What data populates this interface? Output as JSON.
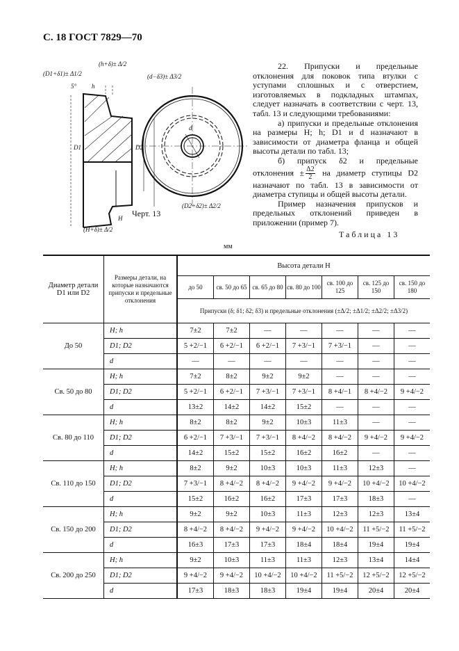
{
  "header": "С. 18 ГОСТ 7829—70",
  "figure": {
    "caption": "Черт. 13",
    "labels": [
      "(h+δ)± Δ/2",
      "h",
      "5°",
      "(d−δ3)± Δ3/2",
      "(D1+δ1)± Δ1/2",
      "D1",
      "D2",
      "(D2+δ2)± Δ2/2",
      "H",
      "(H+δ)± Δ/2",
      "d"
    ]
  },
  "text": {
    "p1": "22. Припуски и предельные отклонения для поковок типа втулки с уступами сплошных и с отверстием, изготовляемых в подкладных штампах, следует назначать в соответствии с черт. 13, табл. 13 и следующими требованиями:",
    "p2": "а) припуски и предельные отклонения на размеры H; h; D1 и d назначают в зависимости от диаметра фланца и общей высоты детали по табл. 13;",
    "p3a": "б) припуск δ2 и предельные отклонения ±",
    "p3_num": "Δ2",
    "p3_den": "2",
    "p3b": "на диаметр ступицы D2 назначают по табл. 13 в зависимости от диаметра ступицы и общей высоты детали.",
    "p4": "Пример назначения припусков и предельных отклонений приведен в приложении (пример 7)."
  },
  "table": {
    "caption": "Таблица 13",
    "unit": "мм",
    "col1_header": "Диаметр детали D1 или D2",
    "col2_header": "Размеры детали, на которые назначаются припуски и предельные отклонения",
    "height_header": "Высота детали H",
    "height_ranges": [
      "до 50",
      "св. 50 до 65",
      "св. 65 до 80",
      "св. 80 до 100",
      "св. 100 до 125",
      "св. 125 до 150",
      "св. 150 до 180"
    ],
    "subheader": "Припуски (δ; δ1; δ2; δ3) и предельные отклонения (±Δ/2; ±Δ1/2; ±Δ2/2; ±Δ3/2)",
    "groups": [
      {
        "diameter": "До 50",
        "rows": [
          {
            "dim": "H; h",
            "values": [
              "7±2",
              "7±2",
              "—",
              "—",
              "—",
              "—",
              "—"
            ]
          },
          {
            "dim": "D1; D2",
            "values": [
              "5 +2/−1",
              "6 +2/−1",
              "6 +2/−1",
              "7 +3/−1",
              "7 +3/−1",
              "—",
              "—"
            ]
          },
          {
            "dim": "d",
            "values": [
              "—",
              "—",
              "—",
              "—",
              "—",
              "—",
              "—"
            ]
          }
        ]
      },
      {
        "diameter": "Св. 50 до 80",
        "rows": [
          {
            "dim": "H; h",
            "values": [
              "7±2",
              "8±2",
              "9±2",
              "9±2",
              "—",
              "—",
              "—"
            ]
          },
          {
            "dim": "D1; D2",
            "values": [
              "5 +2/−1",
              "6 +2/−1",
              "7 +3/−1",
              "7 +3/−1",
              "8 +4/−1",
              "8 +4/−2",
              "9 +4/−2"
            ]
          },
          {
            "dim": "d",
            "values": [
              "13±2",
              "14±2",
              "14±2",
              "15±2",
              "—",
              "—",
              "—"
            ]
          }
        ]
      },
      {
        "diameter": "Св. 80 до 110",
        "rows": [
          {
            "dim": "H; h",
            "values": [
              "8±2",
              "8±2",
              "9±2",
              "10±3",
              "11±3",
              "—",
              "—"
            ]
          },
          {
            "dim": "D1; D2",
            "values": [
              "6 +2/−1",
              "7 +3/−1",
              "7 +3/−1",
              "8 +4/−2",
              "8 +4/−2",
              "9 +4/−2",
              "9 +4/−2"
            ]
          },
          {
            "dim": "d",
            "values": [
              "14±2",
              "15±2",
              "15±2",
              "16±2",
              "16±2",
              "—",
              "—"
            ]
          }
        ]
      },
      {
        "diameter": "Св. 110 до 150",
        "rows": [
          {
            "dim": "H; h",
            "values": [
              "8±2",
              "9±2",
              "10±3",
              "10±3",
              "11±3",
              "12±3",
              "—"
            ]
          },
          {
            "dim": "D1; D2",
            "values": [
              "7 +3/−1",
              "8 +4/−2",
              "8 +4/−2",
              "9 +4/−2",
              "9 +4/−2",
              "10 +4/−2",
              "10 +4/−2"
            ]
          },
          {
            "dim": "d",
            "values": [
              "15±2",
              "16±2",
              "16±2",
              "17±3",
              "17±3",
              "18±3",
              "—"
            ]
          }
        ]
      },
      {
        "diameter": "Св. 150 до 200",
        "rows": [
          {
            "dim": "H; h",
            "values": [
              "9±2",
              "9±2",
              "10±3",
              "11±3",
              "12±3",
              "12±3",
              "13±4"
            ]
          },
          {
            "dim": "D1; D2",
            "values": [
              "8 +4/−2",
              "8 +4/−2",
              "9 +4/−2",
              "9 +4/−2",
              "10 +4/−2",
              "11 +5/−2",
              "11 +5/−2"
            ]
          },
          {
            "dim": "d",
            "values": [
              "16±3",
              "17±3",
              "17±3",
              "18±4",
              "18±4",
              "19±4",
              "19±4"
            ]
          }
        ]
      },
      {
        "diameter": "Св. 200 до 250",
        "rows": [
          {
            "dim": "H; h",
            "values": [
              "9±2",
              "10±3",
              "11±3",
              "11±3",
              "12±3",
              "13±4",
              "14±4"
            ]
          },
          {
            "dim": "D1; D2",
            "values": [
              "9 +4/−2",
              "9 +4/−2",
              "10 +4/−2",
              "10 +4/−2",
              "11 +5/−2",
              "12 +5/−2",
              "12 +5/−2"
            ]
          },
          {
            "dim": "d",
            "values": [
              "17±3",
              "18±3",
              "18±3",
              "19±4",
              "19±4",
              "20±4",
              "20±4"
            ]
          }
        ]
      }
    ]
  }
}
